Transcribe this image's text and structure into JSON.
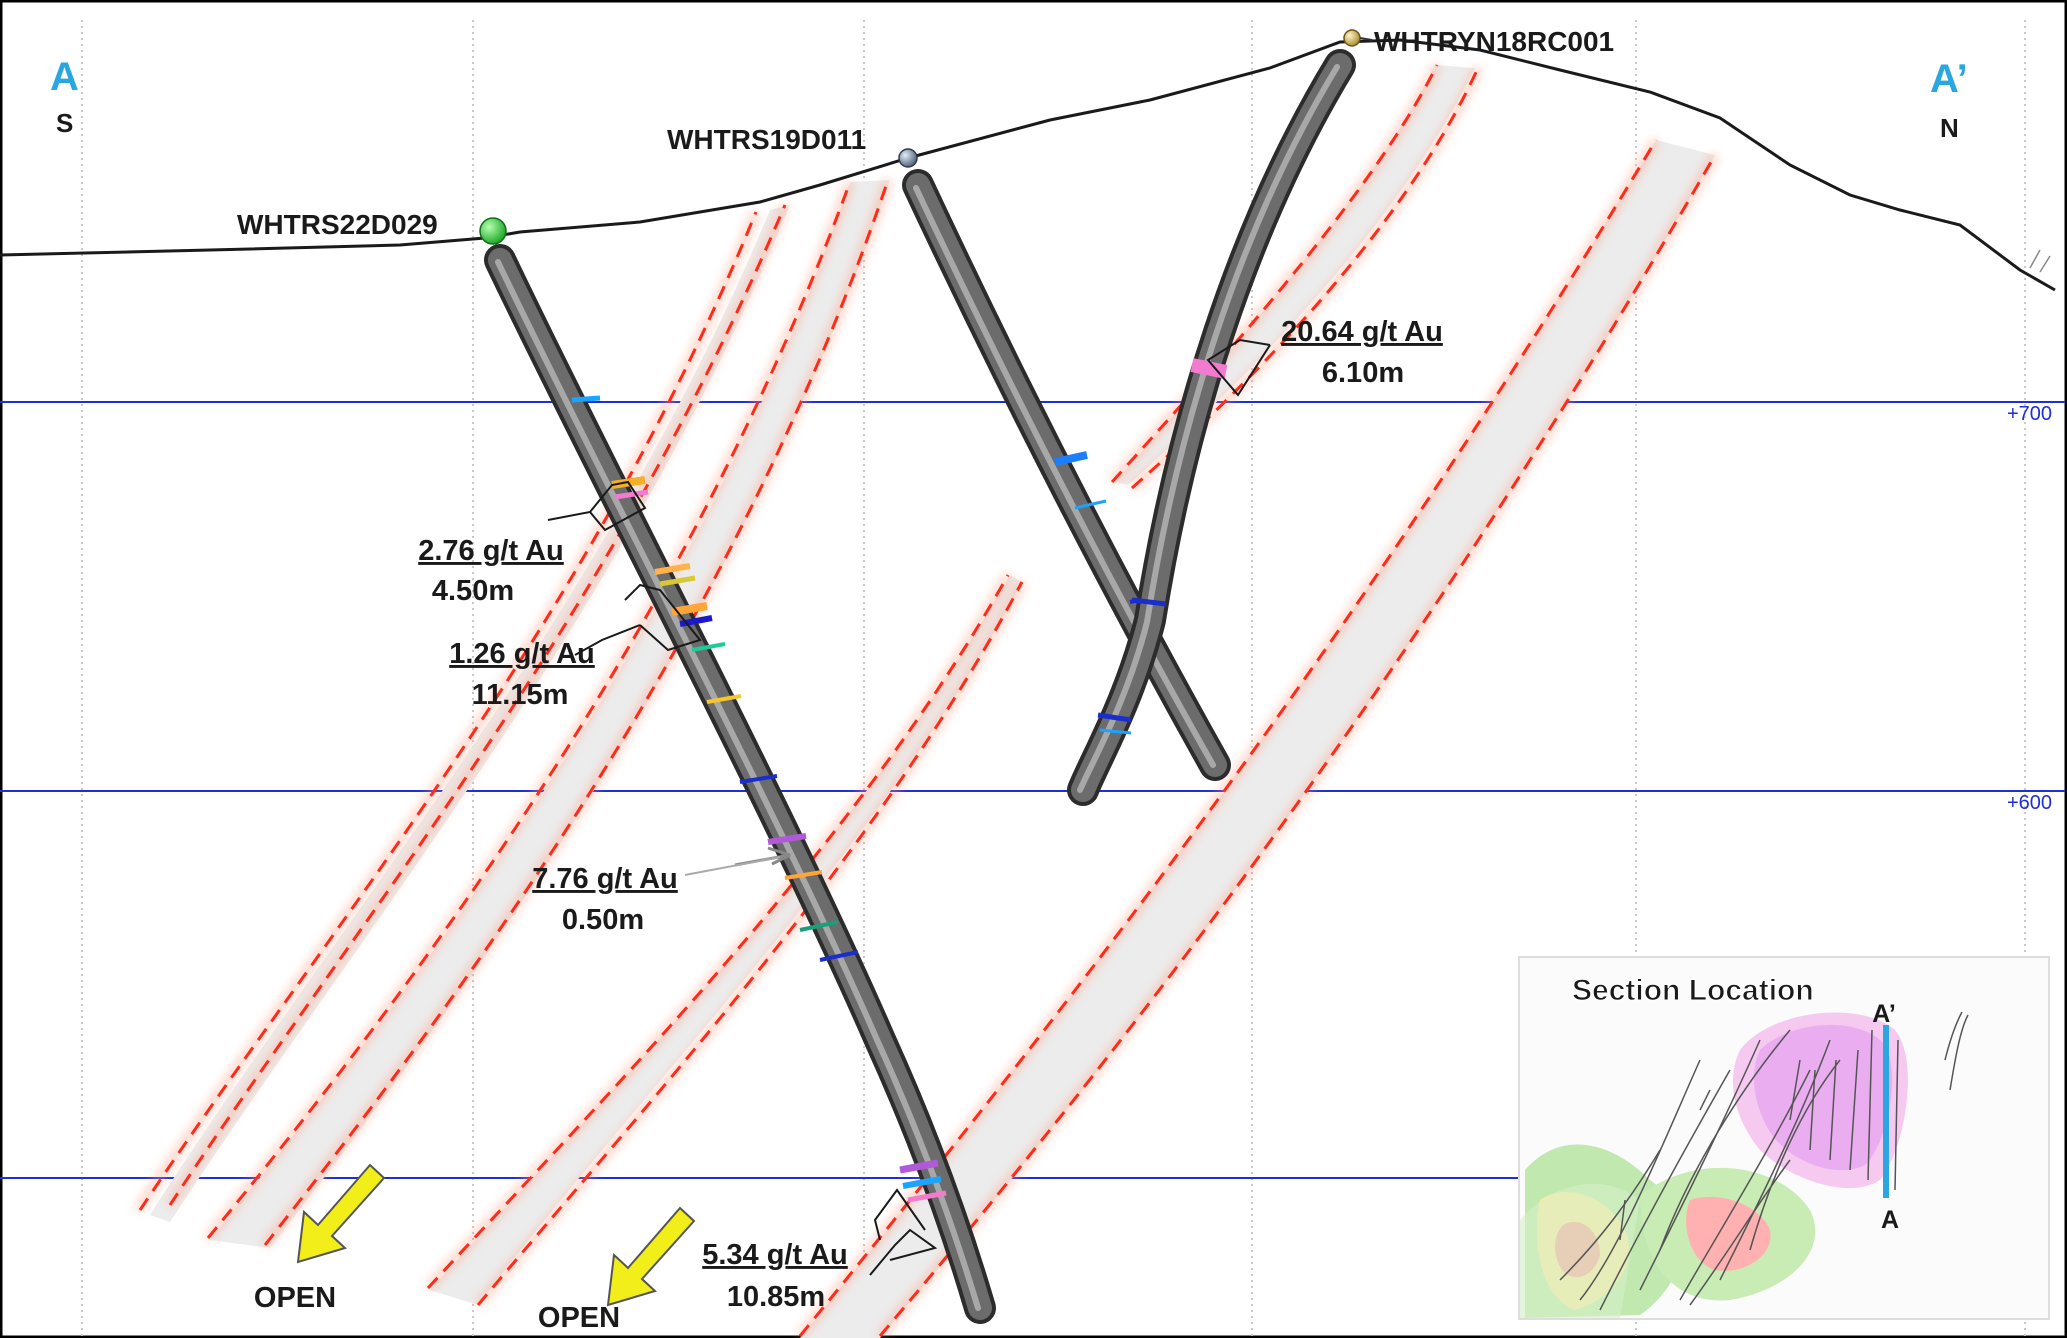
{
  "section": {
    "start_label": "A",
    "start_dir": "S",
    "end_label": "A’",
    "end_dir": "N"
  },
  "elevations": [
    "+700",
    "+600"
  ],
  "drillholes": [
    {
      "id": "WHTRS22D029",
      "collar_color": "#22c431"
    },
    {
      "id": "WHTRS19D011",
      "collar_color": "#6a7c95"
    },
    {
      "id": "WHTRYN18RC001",
      "collar_color": "#c8a94a"
    }
  ],
  "intercepts": [
    {
      "grade": "2.76 g/t Au",
      "width": "4.50m"
    },
    {
      "grade": "1.26 g/t Au",
      "width": "11.15m"
    },
    {
      "grade": "7.76 g/t Au",
      "width": "0.50m"
    },
    {
      "grade": "5.34 g/t Au",
      "width": "10.85m"
    },
    {
      "grade": "20.64 g/t Au",
      "width": "6.10m"
    }
  ],
  "open_labels": [
    "OPEN",
    "OPEN"
  ],
  "inset": {
    "title": "Section Location",
    "top_label": "A’",
    "bottom_label": "A"
  },
  "colors": {
    "section_letter": "#2aa6e0",
    "elevation_line": "#1f2fd8",
    "lode_outline": "#ff2a1a",
    "lode_fill": "#ececec",
    "arrow": "#f2ee1a"
  }
}
